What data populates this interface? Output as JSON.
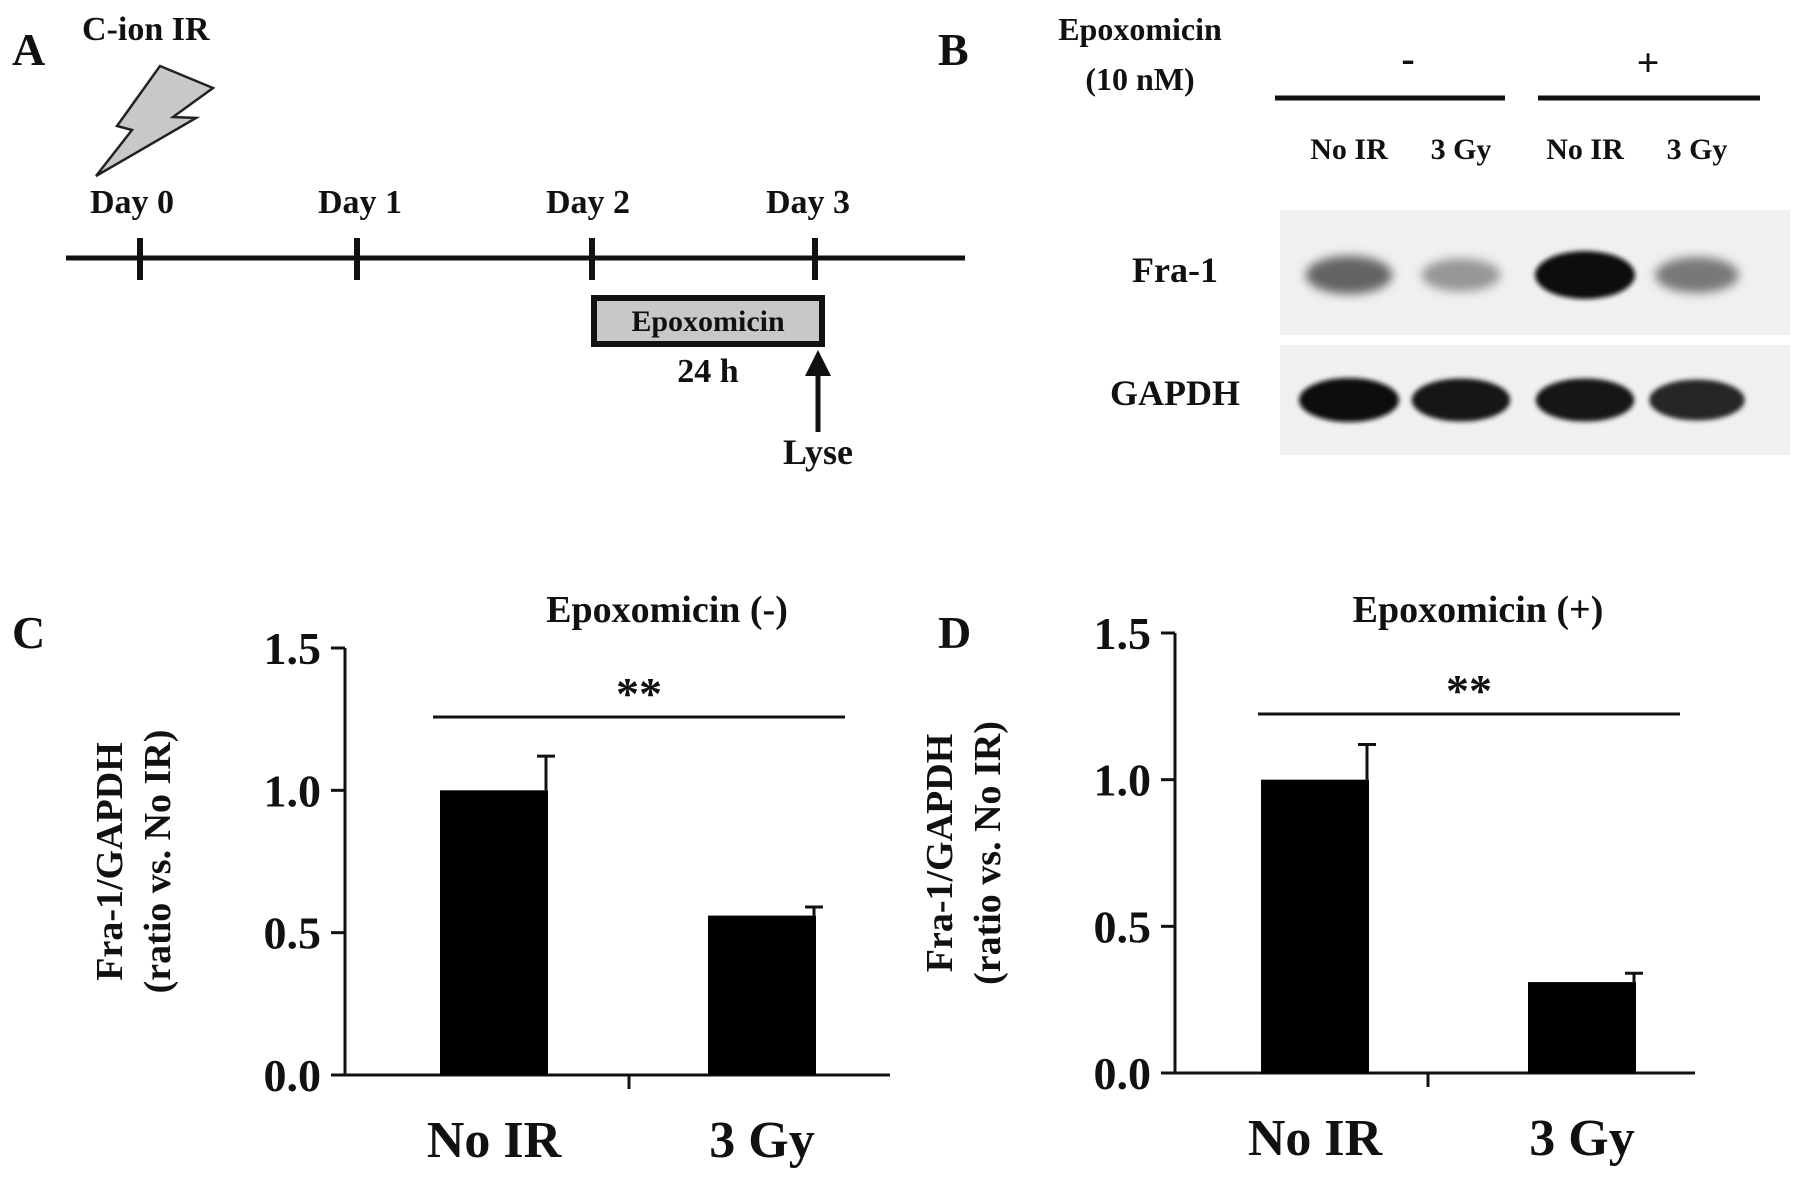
{
  "panels": {
    "a": {
      "letter": "A",
      "irradiation_label": "C-ion IR",
      "days": [
        "Day 0",
        "Day 1",
        "Day 2",
        "Day 3"
      ],
      "treatment_label": "Epoxomicin",
      "duration_label": "24 h",
      "endpoint_label": "Lyse"
    },
    "b": {
      "letter": "B",
      "drug_label_line1": "Epoxomicin",
      "drug_label_line2": "(10 nM)",
      "groups": [
        "-",
        "+"
      ],
      "lanes": [
        "No IR",
        "3 Gy",
        "No IR",
        "3 Gy"
      ],
      "bands": [
        {
          "protein": "Fra-1",
          "intensity": [
            0.55,
            0.3,
            1.0,
            0.45
          ]
        },
        {
          "protein": "GAPDH",
          "intensity": [
            1.0,
            0.95,
            0.95,
            0.85
          ]
        }
      ]
    },
    "c": {
      "letter": "C"
    },
    "d": {
      "letter": "D"
    }
  },
  "chart_data": [
    {
      "type": "bar",
      "panel": "C",
      "title": "Epoxomicin (-)",
      "categories": [
        "No IR",
        "3 Gy"
      ],
      "values": [
        1.0,
        0.56
      ],
      "errors": [
        0.12,
        0.03
      ],
      "ylabel_line1": "Fra-1/GAPDH",
      "ylabel_line2": "(ratio vs. No IR)",
      "ylim": [
        0,
        1.5
      ],
      "yticks": [
        "0.0",
        "0.5",
        "1.0",
        "1.5"
      ],
      "significance": "**",
      "bar_color": "#000000"
    },
    {
      "type": "bar",
      "panel": "D",
      "title": "Epoxomicin (+)",
      "categories": [
        "No IR",
        "3 Gy"
      ],
      "values": [
        1.0,
        0.31
      ],
      "errors": [
        0.12,
        0.03
      ],
      "ylabel_line1": "Fra-1/GAPDH",
      "ylabel_line2": "(ratio vs. No IR)",
      "ylim": [
        0,
        1.5
      ],
      "yticks": [
        "0.0",
        "0.5",
        "1.0",
        "1.5"
      ],
      "significance": "**",
      "bar_color": "#000000"
    }
  ]
}
